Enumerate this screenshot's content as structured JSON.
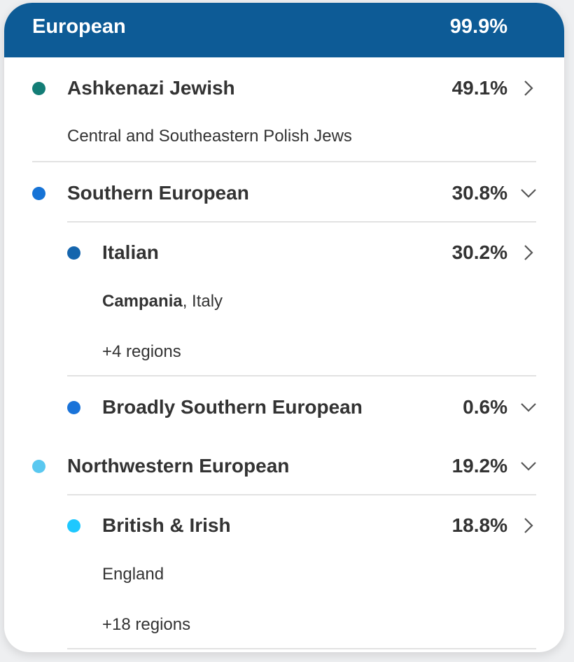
{
  "header": {
    "title": "European",
    "percent": "99.9%",
    "color": "#0d5b96"
  },
  "rows": [
    {
      "name": "Ashkenazi Jewish",
      "percent": "49.1%",
      "color": "#137d76",
      "icon": "chevron-right-icon",
      "subtitle": "Central and Southeastern Polish Jews"
    },
    {
      "name": "Southern European",
      "percent": "30.8%",
      "color": "#1673d6",
      "icon": "chevron-down-icon"
    },
    {
      "name": "Italian",
      "percent": "30.2%",
      "color": "#1565ad",
      "icon": "chevron-right-icon",
      "subtitle_bold": "Campania",
      "subtitle_rest": ", Italy",
      "more": "+4 regions"
    },
    {
      "name": "Broadly Southern European",
      "percent": "0.6%",
      "color": "#1a73d9",
      "icon": "chevron-down-icon"
    },
    {
      "name": "Northwestern European",
      "percent": "19.2%",
      "color": "#5ac8f0",
      "icon": "chevron-down-icon"
    },
    {
      "name": "British & Irish",
      "percent": "18.8%",
      "color": "#1ec8ff",
      "icon": "chevron-right-icon",
      "subtitle": "England",
      "more": "+18 regions"
    }
  ]
}
